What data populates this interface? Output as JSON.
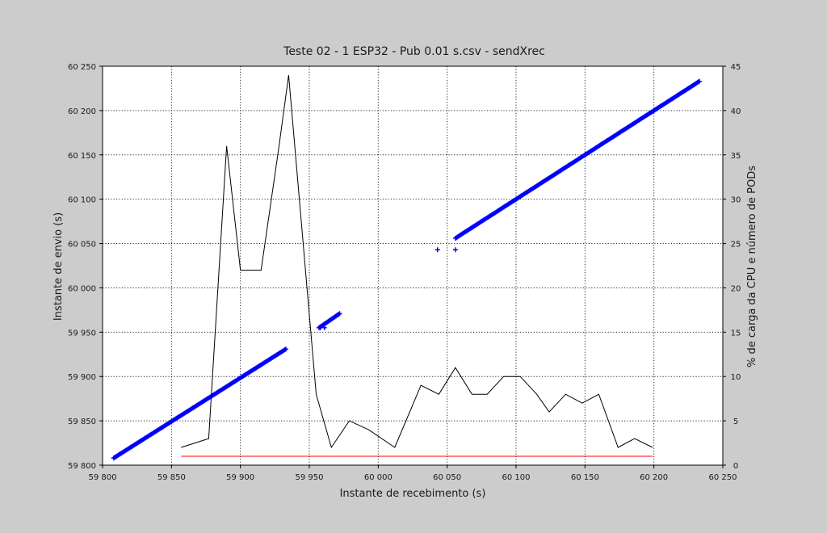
{
  "chart_data": {
    "type": "scatter",
    "title": "Teste 02 - 1 ESP32 - Pub 0.01 s.csv - sendXrec",
    "xlabel": "Instante de recebimento (s)",
    "ylabel": "Instante de envio (s)",
    "y2label": "% de carga da CPU  e número de PODs",
    "xlim": [
      59800,
      60250
    ],
    "ylim": [
      59800,
      60250
    ],
    "y2lim": [
      0,
      45
    ],
    "grid": true,
    "x_ticks": [
      "59 800",
      "59 850",
      "59 900",
      "59 950",
      "60 000",
      "60 050",
      "60 100",
      "60 150",
      "60 200",
      "60 250"
    ],
    "y_ticks": [
      "59 800",
      "59 850",
      "59 900",
      "59 950",
      "60 000",
      "60 050",
      "60 100",
      "60 150",
      "60 200",
      "60 250"
    ],
    "y2_ticks": [
      "0",
      "5",
      "10",
      "15",
      "20",
      "25",
      "30",
      "35",
      "40",
      "45"
    ],
    "series": [
      {
        "color": "#0000ff",
        "axis": "left",
        "marker": "+",
        "segments": [
          {
            "x": [
              59808,
              59933
            ],
            "y": [
              59808,
              59931
            ]
          },
          {
            "x": [
              59957,
              59972
            ],
            "y": [
              59955,
              59971
            ]
          },
          {
            "x": [
              60056,
              60233
            ],
            "y": [
              60056,
              60233
            ]
          }
        ],
        "points": [
          {
            "x": 60043,
            "y": 60043
          },
          {
            "x": 60056,
            "y": 60043
          },
          {
            "x": 59958,
            "y": 59955
          },
          {
            "x": 59961,
            "y": 59955
          }
        ]
      },
      {
        "color": "#000000",
        "axis": "right",
        "x": [
          59857,
          59877,
          59890,
          59900,
          59915,
          59928,
          59935,
          59955,
          59966,
          59979,
          59993,
          60012,
          60031,
          60044,
          60056,
          60068,
          60079,
          60091,
          60103,
          60115,
          60124,
          60136,
          60148,
          60160,
          60174,
          60186,
          60199
        ],
        "y": [
          2,
          3,
          36,
          22,
          22,
          36,
          44,
          8,
          2,
          5,
          4,
          2,
          9,
          8,
          11,
          8,
          8,
          10,
          10,
          8,
          6,
          8,
          7,
          8,
          2,
          3,
          2
        ]
      },
      {
        "color": "#ff0000",
        "axis": "right",
        "x": [
          59857,
          60199
        ],
        "y": [
          1,
          1
        ]
      }
    ]
  }
}
